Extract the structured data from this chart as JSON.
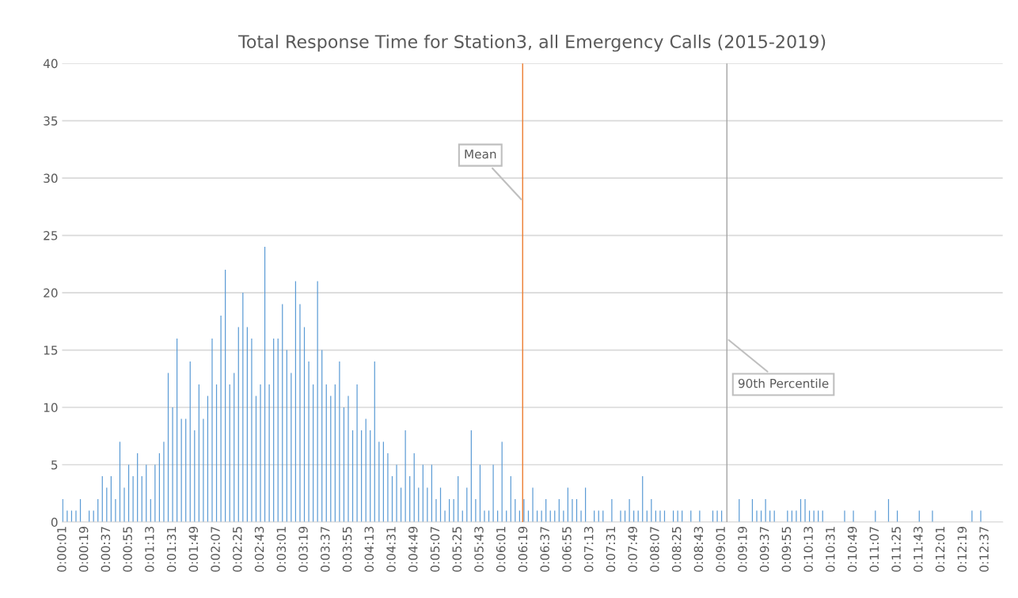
{
  "chart_data": {
    "type": "bar",
    "title": "Total Response Time for Station3, all Emergency Calls (2015-2019)",
    "x": [
      0.0003,
      0.0013,
      0.0023,
      0.0033,
      0.0043,
      0.0063,
      0.0073,
      0.0083,
      0.0093,
      0.0103,
      0.0113,
      0.0123,
      0.0133,
      0.0143,
      0.0153,
      0.0163,
      0.0173,
      0.0183,
      0.0193,
      0.0203,
      0.0213,
      0.0223,
      0.0233,
      0.0243,
      0.0253,
      0.0263,
      0.0273,
      0.0283,
      0.0293,
      0.0303,
      0.0313,
      0.0323,
      0.0333,
      0.0343,
      0.0353,
      0.0363,
      0.0373,
      0.0383,
      0.0393,
      0.0403,
      0.0413,
      0.0423,
      0.0433,
      0.0443,
      0.0453,
      0.0463,
      0.0473,
      0.0483,
      0.0493,
      0.0503,
      0.0513,
      0.0523,
      0.0533,
      0.0543,
      0.0553,
      0.0563,
      0.0573,
      0.0583,
      0.0593,
      0.0603,
      0.0613,
      0.0623,
      0.0633,
      0.0643,
      0.0653,
      0.0663,
      0.0673,
      0.0683,
      0.0693,
      0.0703,
      0.0713,
      0.0723,
      0.0733,
      0.0743,
      0.0753,
      0.0763,
      0.0773,
      0.0783,
      0.0793,
      0.0803,
      0.0813,
      0.0823,
      0.0833,
      0.0843,
      0.0853,
      0.0863,
      0.0873,
      0.0883,
      0.0893,
      0.0903,
      0.0913,
      0.0923,
      0.0933,
      0.0943,
      0.0953,
      0.0963,
      0.0973,
      0.0983,
      0.0993,
      0.1003,
      0.1013,
      0.1023,
      0.1033,
      0.1043,
      0.1053,
      0.1063,
      0.1073,
      0.1083,
      0.1093,
      0.1103,
      0.1113,
      0.1123,
      0.1133,
      0.1143,
      0.1153,
      0.1163,
      0.1173,
      0.1183,
      0.1193,
      0.1213,
      0.1223,
      0.1233,
      0.1253,
      0.1273,
      0.1283,
      0.1293,
      0.1303,
      0.1313,
      0.1323,
      0.1333,
      0.1343,
      0.1353,
      0.1363,
      0.1373,
      0.1393,
      0.1403,
      0.1413,
      0.1433,
      0.1453,
      0.1483,
      0.1493,
      0.1503,
      0.1543,
      0.1573,
      0.1583,
      0.1593,
      0.1603,
      0.1613,
      0.1623,
      0.1653,
      0.1663,
      0.1673,
      0.1683,
      0.1693,
      0.1703,
      0.1713,
      0.1723,
      0.1733,
      0.1783,
      0.1803,
      0.1853,
      0.1883,
      0.1903,
      0.1953,
      0.1983,
      0.2073,
      0.2093
    ],
    "values": [
      2,
      1,
      1,
      1,
      2,
      1,
      1,
      2,
      4,
      3,
      4,
      2,
      7,
      3,
      5,
      4,
      6,
      4,
      5,
      2,
      5,
      6,
      7,
      13,
      10,
      16,
      9,
      9,
      14,
      8,
      12,
      9,
      11,
      16,
      12,
      18,
      22,
      12,
      13,
      17,
      20,
      17,
      16,
      11,
      12,
      24,
      12,
      16,
      16,
      19,
      15,
      13,
      21,
      19,
      17,
      14,
      12,
      21,
      15,
      12,
      11,
      12,
      14,
      10,
      11,
      8,
      12,
      8,
      9,
      8,
      14,
      7,
      7,
      6,
      4,
      5,
      3,
      8,
      4,
      6,
      3,
      5,
      3,
      5,
      2,
      3,
      1,
      2,
      2,
      4,
      1,
      3,
      8,
      2,
      5,
      1,
      1,
      5,
      1,
      7,
      1,
      4,
      2,
      1,
      2,
      1,
      3,
      1,
      1,
      2,
      1,
      1,
      2,
      1,
      3,
      2,
      2,
      1,
      3,
      1,
      1,
      1,
      2,
      1,
      1,
      2,
      1,
      1,
      4,
      1,
      2,
      1,
      1,
      1,
      1,
      1,
      1,
      1,
      1,
      1,
      1,
      1,
      2,
      2,
      1,
      1,
      2,
      1,
      1,
      1,
      1,
      1,
      2,
      2,
      1,
      1,
      1,
      1,
      1,
      1,
      1,
      2,
      1,
      1,
      1,
      1,
      1
    ],
    "color": "#5b9bd5",
    "xlim": [
      0.000139,
      0.2143
    ],
    "xticks": [
      {
        "value": 0.000278,
        "label": "0:00:01"
      },
      {
        "value": 0.005278,
        "label": "0:00:19"
      },
      {
        "value": 0.010278,
        "label": "0:00:37"
      },
      {
        "value": 0.015278,
        "label": "0:00:55"
      },
      {
        "value": 0.020278,
        "label": "0:01:13"
      },
      {
        "value": 0.025278,
        "label": "0:01:31"
      },
      {
        "value": 0.030278,
        "label": "0:01:49"
      },
      {
        "value": 0.035278,
        "label": "0:02:07"
      },
      {
        "value": 0.040278,
        "label": "0:02:25"
      },
      {
        "value": 0.045278,
        "label": "0:02:43"
      },
      {
        "value": 0.050278,
        "label": "0:03:01"
      },
      {
        "value": 0.055278,
        "label": "0:03:19"
      },
      {
        "value": 0.060278,
        "label": "0:03:37"
      },
      {
        "value": 0.065278,
        "label": "0:03:55"
      },
      {
        "value": 0.070278,
        "label": "0:04:13"
      },
      {
        "value": 0.075278,
        "label": "0:04:31"
      },
      {
        "value": 0.080278,
        "label": "0:04:49"
      },
      {
        "value": 0.085278,
        "label": "0:05:07"
      },
      {
        "value": 0.090278,
        "label": "0:05:25"
      },
      {
        "value": 0.095278,
        "label": "0:05:43"
      },
      {
        "value": 0.100278,
        "label": "0:06:01"
      },
      {
        "value": 0.105278,
        "label": "0:06:19"
      },
      {
        "value": 0.110278,
        "label": "0:06:37"
      },
      {
        "value": 0.115278,
        "label": "0:06:55"
      },
      {
        "value": 0.120278,
        "label": "0:07:13"
      },
      {
        "value": 0.125278,
        "label": "0:07:31"
      },
      {
        "value": 0.130278,
        "label": "0:07:49"
      },
      {
        "value": 0.135278,
        "label": "0:08:07"
      },
      {
        "value": 0.140278,
        "label": "0:08:25"
      },
      {
        "value": 0.145278,
        "label": "0:08:43"
      },
      {
        "value": 0.150278,
        "label": "0:09:01"
      },
      {
        "value": 0.155278,
        "label": "0:09:19"
      },
      {
        "value": 0.160278,
        "label": "0:09:37"
      },
      {
        "value": 0.165278,
        "label": "0:09:55"
      },
      {
        "value": 0.170278,
        "label": "0:10:13"
      },
      {
        "value": 0.175278,
        "label": "0:10:31"
      },
      {
        "value": 0.180278,
        "label": "0:10:49"
      },
      {
        "value": 0.185278,
        "label": "0:11:07"
      },
      {
        "value": 0.190278,
        "label": "0:11:25"
      },
      {
        "value": 0.195278,
        "label": "0:11:43"
      },
      {
        "value": 0.200278,
        "label": "0:12:01"
      },
      {
        "value": 0.205278,
        "label": "0:12:19"
      },
      {
        "value": 0.210278,
        "label": "0:12:37"
      }
    ],
    "ylim": [
      0,
      40
    ],
    "yticks": [
      0,
      5,
      10,
      15,
      20,
      25,
      30,
      35,
      40
    ],
    "grid": "y",
    "ref_lines": [
      {
        "axis": "x",
        "value": 0.105,
        "label": "Mean",
        "color": "#ed7d31"
      },
      {
        "axis": "x",
        "value": 0.1515,
        "label": "90th Percentile",
        "color": "#a5a5a5"
      }
    ]
  }
}
